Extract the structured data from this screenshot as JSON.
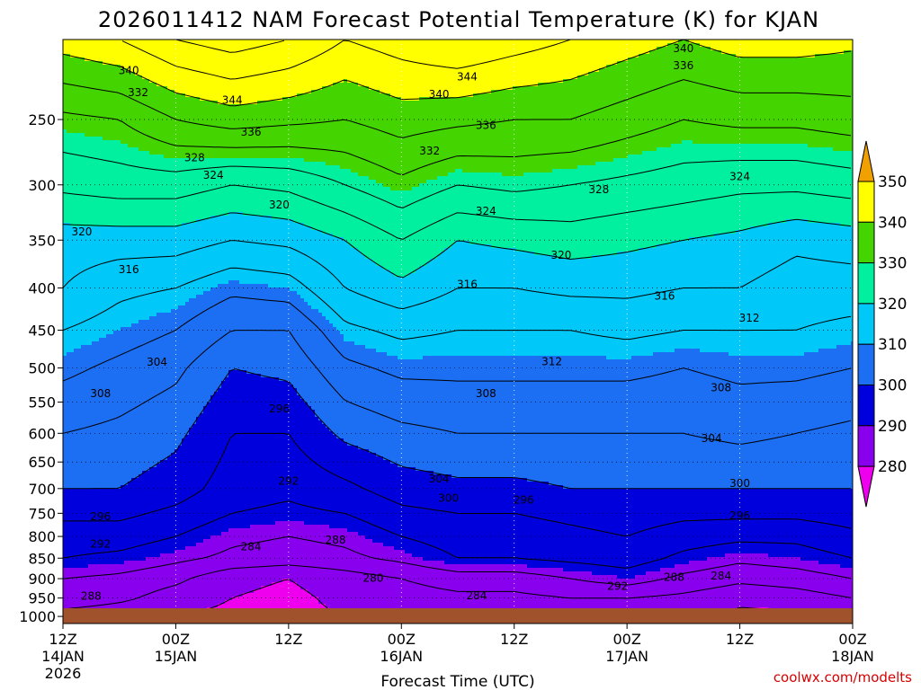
{
  "chart_data": {
    "type": "heatmap",
    "title": "2026011412 NAM Forecast Potential Temperature (K) for KJAN",
    "xlabel": "Forecast Time (UTC)",
    "ylabel": "",
    "x_ticks": [
      {
        "hours": 0,
        "time": "12Z",
        "date": "14JAN",
        "year": "2026"
      },
      {
        "hours": 12,
        "time": "00Z",
        "date": "15JAN",
        "year": ""
      },
      {
        "hours": 24,
        "time": "12Z",
        "date": "",
        "year": ""
      },
      {
        "hours": 36,
        "time": "00Z",
        "date": "16JAN",
        "year": ""
      },
      {
        "hours": 48,
        "time": "12Z",
        "date": "",
        "year": ""
      },
      {
        "hours": 60,
        "time": "00Z",
        "date": "17JAN",
        "year": ""
      },
      {
        "hours": 72,
        "time": "12Z",
        "date": "",
        "year": ""
      },
      {
        "hours": 84,
        "time": "00Z",
        "date": "18JAN",
        "year": ""
      }
    ],
    "xlim_hours": [
      0,
      84
    ],
    "y_ticks": [
      250,
      300,
      350,
      400,
      450,
      500,
      550,
      600,
      650,
      700,
      750,
      800,
      850,
      900,
      950,
      1000
    ],
    "ylim": [
      200,
      1020
    ],
    "y_scale": "log",
    "colorbar": {
      "levels": [
        280,
        290,
        300,
        310,
        320,
        330,
        340,
        350
      ],
      "colors": [
        "#ee00ee",
        "#8800ee",
        "#0000dd",
        "#1c6ef2",
        "#00c8f8",
        "#00f0a0",
        "#44d400",
        "#ffff00",
        "#f0a000"
      ]
    },
    "grid": true,
    "series": [
      {
        "hours": 0,
        "z": [
          [
            1000,
            282
          ],
          [
            950,
            287
          ],
          [
            900,
            288
          ],
          [
            850,
            292
          ],
          [
            800,
            294
          ],
          [
            750,
            297
          ],
          [
            700,
            300
          ],
          [
            600,
            304
          ],
          [
            500,
            309
          ],
          [
            450,
            312
          ],
          [
            400,
            316
          ],
          [
            350,
            318
          ],
          [
            300,
            325
          ],
          [
            250,
            331
          ],
          [
            200,
            342
          ]
        ]
      },
      {
        "hours": 6,
        "z": [
          [
            1000,
            281
          ],
          [
            950,
            285
          ],
          [
            900,
            287
          ],
          [
            850,
            291
          ],
          [
            800,
            294
          ],
          [
            750,
            297
          ],
          [
            700,
            300
          ],
          [
            600,
            303
          ],
          [
            500,
            307
          ],
          [
            450,
            310
          ],
          [
            400,
            313
          ],
          [
            350,
            318
          ],
          [
            300,
            326
          ],
          [
            250,
            332
          ],
          [
            200,
            344
          ]
        ]
      },
      {
        "hours": 12,
        "z": [
          [
            1000,
            280
          ],
          [
            950,
            282
          ],
          [
            900,
            285
          ],
          [
            850,
            289
          ],
          [
            800,
            292
          ],
          [
            750,
            295
          ],
          [
            700,
            298
          ],
          [
            600,
            301
          ],
          [
            500,
            305
          ],
          [
            450,
            308
          ],
          [
            400,
            312
          ],
          [
            350,
            318
          ],
          [
            300,
            326
          ],
          [
            250,
            336
          ],
          [
            200,
            348
          ]
        ]
      },
      {
        "hours": 18,
        "z": [
          [
            1000,
            279
          ],
          [
            950,
            280
          ],
          [
            900,
            281
          ],
          [
            850,
            287
          ],
          [
            800,
            289
          ],
          [
            750,
            292
          ],
          [
            700,
            294
          ],
          [
            600,
            296
          ],
          [
            500,
            300
          ],
          [
            450,
            304
          ],
          [
            400,
            309
          ],
          [
            350,
            316
          ],
          [
            300,
            324
          ],
          [
            250,
            338
          ],
          [
            200,
            350
          ]
        ]
      },
      {
        "hours": 24,
        "z": [
          [
            1000,
            279
          ],
          [
            950,
            279
          ],
          [
            900,
            280
          ],
          [
            850,
            286
          ],
          [
            800,
            288
          ],
          [
            750,
            291
          ],
          [
            700,
            293
          ],
          [
            600,
            296
          ],
          [
            500,
            301
          ],
          [
            450,
            304
          ],
          [
            400,
            310
          ],
          [
            350,
            317
          ],
          [
            300,
            325
          ],
          [
            250,
            337
          ],
          [
            200,
            348
          ]
        ]
      },
      {
        "hours": 30,
        "z": [
          [
            1000,
            280
          ],
          [
            950,
            281
          ],
          [
            900,
            282
          ],
          [
            850,
            287
          ],
          [
            800,
            289
          ],
          [
            750,
            292
          ],
          [
            700,
            295
          ],
          [
            600,
            301
          ],
          [
            500,
            307
          ],
          [
            450,
            311
          ],
          [
            400,
            316
          ],
          [
            350,
            320
          ],
          [
            300,
            328
          ],
          [
            250,
            336
          ],
          [
            200,
            344
          ]
        ]
      },
      {
        "hours": 36,
        "z": [
          [
            1000,
            281
          ],
          [
            950,
            282
          ],
          [
            900,
            284
          ],
          [
            850,
            289
          ],
          [
            800,
            292
          ],
          [
            750,
            295
          ],
          [
            700,
            298
          ],
          [
            600,
            303
          ],
          [
            500,
            309
          ],
          [
            450,
            313
          ],
          [
            400,
            319
          ],
          [
            350,
            324
          ],
          [
            300,
            331
          ],
          [
            250,
            338
          ],
          [
            200,
            346
          ]
        ]
      },
      {
        "hours": 42,
        "z": [
          [
            1000,
            282
          ],
          [
            950,
            283
          ],
          [
            900,
            286
          ],
          [
            850,
            292
          ],
          [
            800,
            294
          ],
          [
            750,
            296
          ],
          [
            700,
            299
          ],
          [
            600,
            304
          ],
          [
            500,
            309
          ],
          [
            450,
            312
          ],
          [
            400,
            316
          ],
          [
            350,
            320
          ],
          [
            300,
            328
          ],
          [
            250,
            337
          ],
          [
            200,
            348
          ]
        ]
      },
      {
        "hours": 48,
        "z": [
          [
            1000,
            282
          ],
          [
            950,
            283
          ],
          [
            900,
            286
          ],
          [
            850,
            292
          ],
          [
            800,
            294
          ],
          [
            750,
            296
          ],
          [
            700,
            299
          ],
          [
            600,
            304
          ],
          [
            500,
            309
          ],
          [
            450,
            312
          ],
          [
            400,
            316
          ],
          [
            350,
            321
          ],
          [
            300,
            329
          ],
          [
            250,
            336
          ],
          [
            200,
            346
          ]
        ]
      },
      {
        "hours": 54,
        "z": [
          [
            1000,
            282
          ],
          [
            950,
            284
          ],
          [
            900,
            288
          ],
          [
            850,
            293
          ],
          [
            800,
            295
          ],
          [
            750,
            297
          ],
          [
            700,
            300
          ],
          [
            600,
            304
          ],
          [
            500,
            309
          ],
          [
            450,
            312
          ],
          [
            400,
            317
          ],
          [
            350,
            322
          ],
          [
            300,
            328
          ],
          [
            250,
            336
          ],
          [
            200,
            344
          ]
        ]
      },
      {
        "hours": 60,
        "z": [
          [
            1000,
            282
          ],
          [
            950,
            284
          ],
          [
            900,
            290
          ],
          [
            850,
            294
          ],
          [
            800,
            296
          ],
          [
            750,
            298
          ],
          [
            700,
            300
          ],
          [
            600,
            304
          ],
          [
            500,
            309
          ],
          [
            450,
            313
          ],
          [
            400,
            317
          ],
          [
            350,
            321
          ],
          [
            300,
            327
          ],
          [
            250,
            334
          ],
          [
            200,
            342
          ]
        ]
      },
      {
        "hours": 66,
        "z": [
          [
            1000,
            281
          ],
          [
            950,
            283
          ],
          [
            900,
            287
          ],
          [
            850,
            291
          ],
          [
            800,
            294
          ],
          [
            750,
            297
          ],
          [
            700,
            300
          ],
          [
            600,
            304
          ],
          [
            500,
            308
          ],
          [
            450,
            312
          ],
          [
            400,
            316
          ],
          [
            350,
            320
          ],
          [
            300,
            326
          ],
          [
            250,
            332
          ],
          [
            200,
            340
          ]
        ]
      },
      {
        "hours": 72,
        "z": [
          [
            1000,
            279
          ],
          [
            950,
            281
          ],
          [
            900,
            285
          ],
          [
            850,
            289
          ],
          [
            800,
            293
          ],
          [
            750,
            297
          ],
          [
            700,
            300
          ],
          [
            600,
            305
          ],
          [
            500,
            309
          ],
          [
            450,
            312
          ],
          [
            400,
            316
          ],
          [
            350,
            319
          ],
          [
            300,
            325
          ],
          [
            250,
            333
          ],
          [
            200,
            342
          ]
        ]
      },
      {
        "hours": 78,
        "z": [
          [
            1000,
            279
          ],
          [
            950,
            282
          ],
          [
            900,
            286
          ],
          [
            850,
            290
          ],
          [
            800,
            293
          ],
          [
            750,
            297
          ],
          [
            700,
            300
          ],
          [
            600,
            304
          ],
          [
            500,
            309
          ],
          [
            450,
            312
          ],
          [
            400,
            314
          ],
          [
            350,
            317
          ],
          [
            300,
            325
          ],
          [
            250,
            333
          ],
          [
            200,
            342
          ]
        ]
      },
      {
        "hours": 84,
        "z": [
          [
            1000,
            282
          ],
          [
            950,
            284
          ],
          [
            900,
            288
          ],
          [
            850,
            292
          ],
          [
            800,
            295
          ],
          [
            750,
            298
          ],
          [
            700,
            300
          ],
          [
            600,
            303
          ],
          [
            500,
            308
          ],
          [
            450,
            311
          ],
          [
            400,
            314
          ],
          [
            350,
            318
          ],
          [
            300,
            326
          ],
          [
            250,
            334
          ],
          [
            200,
            341
          ]
        ]
      }
    ],
    "contour_labels": [
      {
        "value": "340",
        "hours": 7,
        "p": 218
      },
      {
        "value": "344",
        "hours": 18,
        "p": 237
      },
      {
        "value": "344",
        "hours": 43,
        "p": 222
      },
      {
        "value": "340",
        "hours": 40,
        "p": 233
      },
      {
        "value": "340",
        "hours": 66,
        "p": 205
      },
      {
        "value": "336",
        "hours": 66,
        "p": 215
      },
      {
        "value": "336",
        "hours": 20,
        "p": 259
      },
      {
        "value": "336",
        "hours": 45,
        "p": 254
      },
      {
        "value": "332",
        "hours": 8,
        "p": 232
      },
      {
        "value": "332",
        "hours": 39,
        "p": 273
      },
      {
        "value": "328",
        "hours": 14,
        "p": 278
      },
      {
        "value": "328",
        "hours": 57,
        "p": 304
      },
      {
        "value": "324",
        "hours": 16,
        "p": 292
      },
      {
        "value": "324",
        "hours": 45,
        "p": 323
      },
      {
        "value": "324",
        "hours": 72,
        "p": 293
      },
      {
        "value": "320",
        "hours": 2,
        "p": 342
      },
      {
        "value": "320",
        "hours": 23,
        "p": 317
      },
      {
        "value": "320",
        "hours": 53,
        "p": 365
      },
      {
        "value": "316",
        "hours": 7,
        "p": 380
      },
      {
        "value": "316",
        "hours": 43,
        "p": 396
      },
      {
        "value": "316",
        "hours": 64,
        "p": 409
      },
      {
        "value": "312",
        "hours": 73,
        "p": 435
      },
      {
        "value": "312",
        "hours": 52,
        "p": 491
      },
      {
        "value": "308",
        "hours": 4,
        "p": 537
      },
      {
        "value": "308",
        "hours": 45,
        "p": 537
      },
      {
        "value": "308",
        "hours": 70,
        "p": 528
      },
      {
        "value": "304",
        "hours": 10,
        "p": 492
      },
      {
        "value": "304",
        "hours": 40,
        "p": 681
      },
      {
        "value": "304",
        "hours": 69,
        "p": 609
      },
      {
        "value": "300",
        "hours": 41,
        "p": 719
      },
      {
        "value": "300",
        "hours": 72,
        "p": 690
      },
      {
        "value": "296",
        "hours": 23,
        "p": 560
      },
      {
        "value": "296",
        "hours": 49,
        "p": 723
      },
      {
        "value": "296",
        "hours": 72,
        "p": 755
      },
      {
        "value": "296",
        "hours": 4,
        "p": 757
      },
      {
        "value": "292",
        "hours": 24,
        "p": 686
      },
      {
        "value": "292",
        "hours": 4,
        "p": 817
      },
      {
        "value": "292",
        "hours": 59,
        "p": 919
      },
      {
        "value": "288",
        "hours": 29,
        "p": 808
      },
      {
        "value": "288",
        "hours": 3,
        "p": 945
      },
      {
        "value": "288",
        "hours": 65,
        "p": 897
      },
      {
        "value": "284",
        "hours": 20,
        "p": 823
      },
      {
        "value": "284",
        "hours": 44,
        "p": 944
      },
      {
        "value": "284",
        "hours": 70,
        "p": 893
      },
      {
        "value": "280",
        "hours": 33,
        "p": 899
      }
    ]
  },
  "credit": "coolwx.com/modelts"
}
